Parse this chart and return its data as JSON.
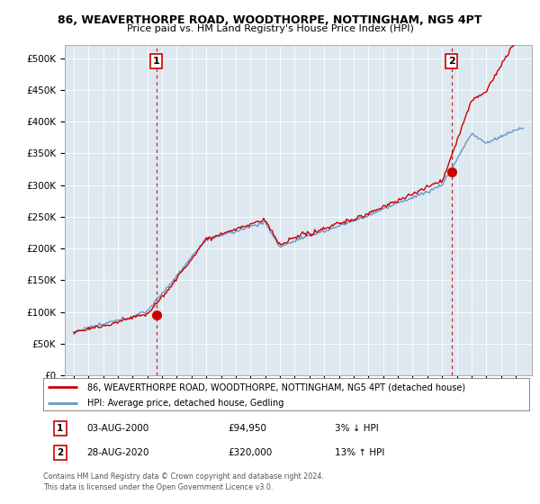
{
  "title": "86, WEAVERTHORPE ROAD, WOODTHORPE, NOTTINGHAM, NG5 4PT",
  "subtitle": "Price paid vs. HM Land Registry's House Price Index (HPI)",
  "legend_line1": "86, WEAVERTHORPE ROAD, WOODTHORPE, NOTTINGHAM, NG5 4PT (detached house)",
  "legend_line2": "HPI: Average price, detached house, Gedling",
  "annotation1_label": "1",
  "annotation1_date": "03-AUG-2000",
  "annotation1_price": "£94,950",
  "annotation1_hpi": "3% ↓ HPI",
  "annotation2_label": "2",
  "annotation2_date": "28-AUG-2020",
  "annotation2_price": "£320,000",
  "annotation2_hpi": "13% ↑ HPI",
  "footnote": "Contains HM Land Registry data © Crown copyright and database right 2024.\nThis data is licensed under the Open Government Licence v3.0.",
  "hpi_color": "#6699cc",
  "price_color": "#cc0000",
  "chart_bg": "#dde8f0",
  "background_color": "#ffffff",
  "grid_color": "#ffffff",
  "ylim": [
    0,
    520000
  ],
  "yticks": [
    0,
    50000,
    100000,
    150000,
    200000,
    250000,
    300000,
    350000,
    400000,
    450000,
    500000
  ],
  "sale1_year": 2000.6,
  "sale1_price": 94950,
  "sale2_year": 2020.65,
  "sale2_price": 320000
}
